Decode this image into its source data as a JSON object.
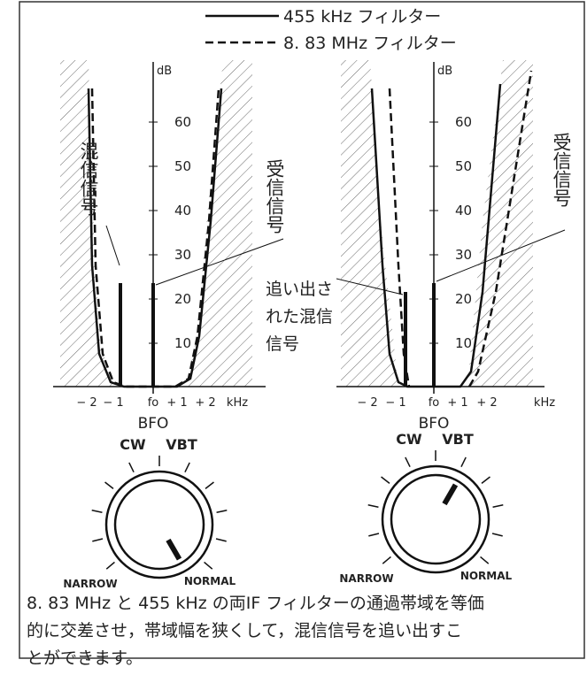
{
  "legend": [
    {
      "label": "455 kHz フィルター"
    },
    {
      "label": "8. 83 MHz フィルター"
    }
  ],
  "charts": [
    {
      "y_unit": "dB",
      "yticks": [
        "60",
        "50",
        "40",
        "30",
        "20",
        "10"
      ],
      "xticks": [
        "− 2",
        "− 1",
        "fo",
        "+ 1",
        "+ 2",
        "kHz"
      ],
      "x_title": "BFO",
      "knob": {
        "left_label": "CW",
        "right_label": "VBT",
        "low_label": "NARROW",
        "high_label": "NORMAL"
      }
    },
    {
      "y_unit": "dB",
      "yticks": [
        "60",
        "50",
        "40",
        "30",
        "20",
        "10"
      ],
      "xticks": [
        "− 2",
        "− 1",
        "fo",
        "+ 1",
        "+ 2",
        "kHz"
      ],
      "x_title": "BFO",
      "knob": {
        "left_label": "CW",
        "right_label": "VBT",
        "low_label": "NARROW",
        "high_label": "NORMAL"
      }
    }
  ],
  "annotations": {
    "interference": "混信信号",
    "received_left": "受信信号",
    "received_right": "受信信号",
    "pushed_out": [
      "追い出さ",
      "れた混信",
      "信号"
    ]
  },
  "caption": [
    "8. 83 MHz と 455 kHz の両IF フィルターの通過帯域を等価",
    "的に交差させ，帯域幅を狭くして，混信信号を追い出すこ",
    "とができます。"
  ]
}
